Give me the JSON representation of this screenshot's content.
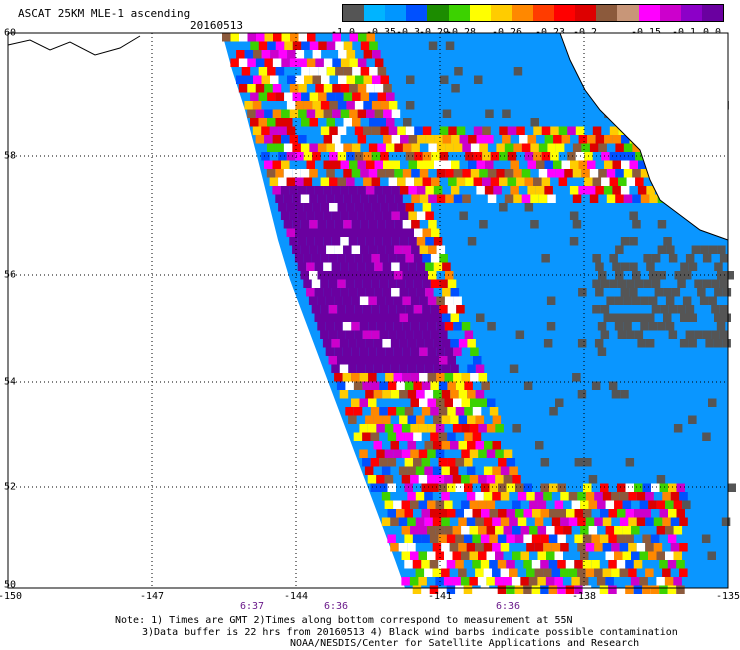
{
  "header": {
    "title": "ASCAT 25KM MLE-1 ascending",
    "date": "20160513"
  },
  "colorbar": {
    "colors": [
      "#555555",
      "#00b4ff",
      "#0096ff",
      "#0050ff",
      "#1c8c00",
      "#3cd200",
      "#ffff00",
      "#ffcc00",
      "#ff8800",
      "#ff3c00",
      "#ff0000",
      "#dd0000",
      "#8c5a3c",
      "#c89678",
      "#ff00ff",
      "#cc00cc",
      "#8c00c8",
      "#6a00a0"
    ],
    "tick_labels": [
      "-1.0",
      "-0.35",
      "-0.3",
      "-0.29",
      "-0.28",
      "-0.26",
      "-0.23",
      "-0.2",
      "-0.15",
      "-0.1",
      "0.0"
    ]
  },
  "axes": {
    "lat_labels": [
      "60",
      "58",
      "56",
      "54",
      "52",
      "50"
    ],
    "lon_labels": [
      "-150",
      "-147",
      "-144",
      "-141",
      "-138",
      "-135"
    ],
    "time_labels": [
      "6:37",
      "6:36",
      "6:36"
    ]
  },
  "notes": {
    "line1": "Note: 1) Times are GMT 2)Times along bottom correspond to measurement at 55N",
    "line2": "3)Data buffer is 22 hrs from 20160513 4) Black wind barbs indicate possible contamination",
    "line3": "NOAA/NESDIS/Center for Satellite Applications and Research"
  },
  "map": {
    "lat_range": [
      50,
      60
    ],
    "lon_range": [
      -150,
      -135
    ],
    "ocean_color": "#0a96ff",
    "land_color": "#ffffff",
    "grid": true
  }
}
